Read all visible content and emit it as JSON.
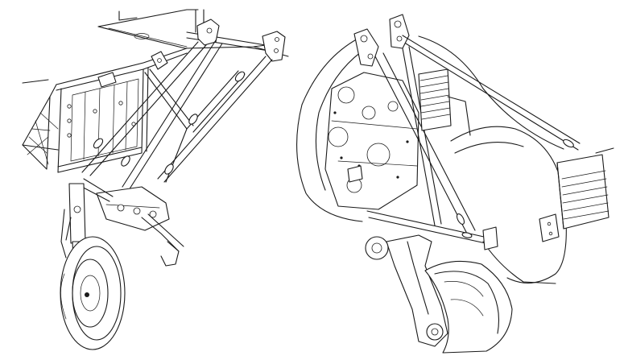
{
  "figure": {
    "panels": [
      {
        "id": "left",
        "subject": "landing-gear-strut-assembly"
      },
      {
        "id": "right",
        "subject": "landing-gear-fairing-assembly"
      }
    ],
    "line_color": "#1a1a1a",
    "background_color": "#ffffff"
  }
}
